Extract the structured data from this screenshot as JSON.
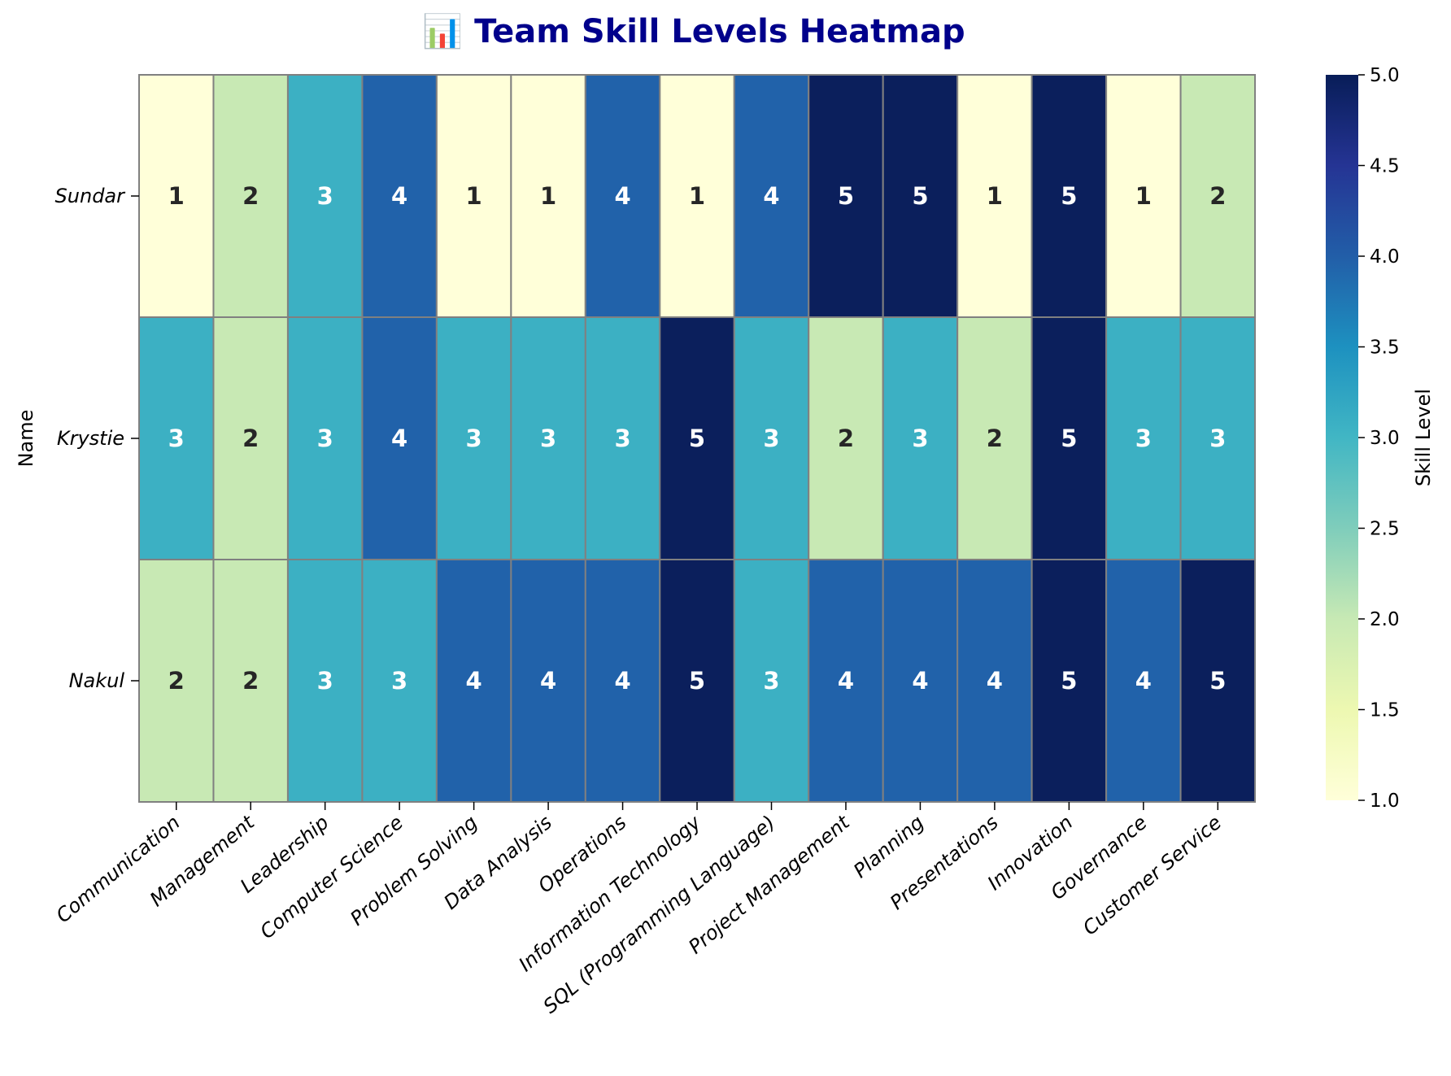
{
  "chart_data": {
    "type": "heatmap",
    "title": "📊 Team Skill Levels Heatmap",
    "ylabel": "Name",
    "xlabel": "",
    "rows": [
      "Sundar",
      "Krystie",
      "Nakul"
    ],
    "columns": [
      "Communication",
      "Management",
      "Leadership",
      "Computer Science",
      "Problem Solving",
      "Data Analysis",
      "Operations",
      "Information Technology",
      "SQL (Programming Language)",
      "Project Management",
      "Planning",
      "Presentations",
      "Innovation",
      "Governance",
      "Customer Service"
    ],
    "values": [
      [
        1,
        2,
        3,
        4,
        1,
        1,
        4,
        1,
        4,
        5,
        5,
        1,
        5,
        1,
        2
      ],
      [
        3,
        2,
        3,
        4,
        3,
        3,
        3,
        5,
        3,
        2,
        3,
        2,
        5,
        3,
        3
      ],
      [
        2,
        2,
        3,
        3,
        4,
        4,
        4,
        5,
        3,
        4,
        4,
        4,
        5,
        4,
        5
      ]
    ],
    "colormap": "YlGnBu",
    "vmin": 1,
    "vmax": 5,
    "colorbar": {
      "label": "Skill Level",
      "ticks": [
        "1.0",
        "1.5",
        "2.0",
        "2.5",
        "3.0",
        "3.5",
        "4.0",
        "4.5",
        "5.0"
      ]
    },
    "cell_colors": {
      "1": "#ffffd9",
      "2": "#c8e9b4",
      "3": "#3cb0c3",
      "4": "#2162aa",
      "5": "#0b1f5c"
    },
    "grid_line_color": "#808080"
  }
}
